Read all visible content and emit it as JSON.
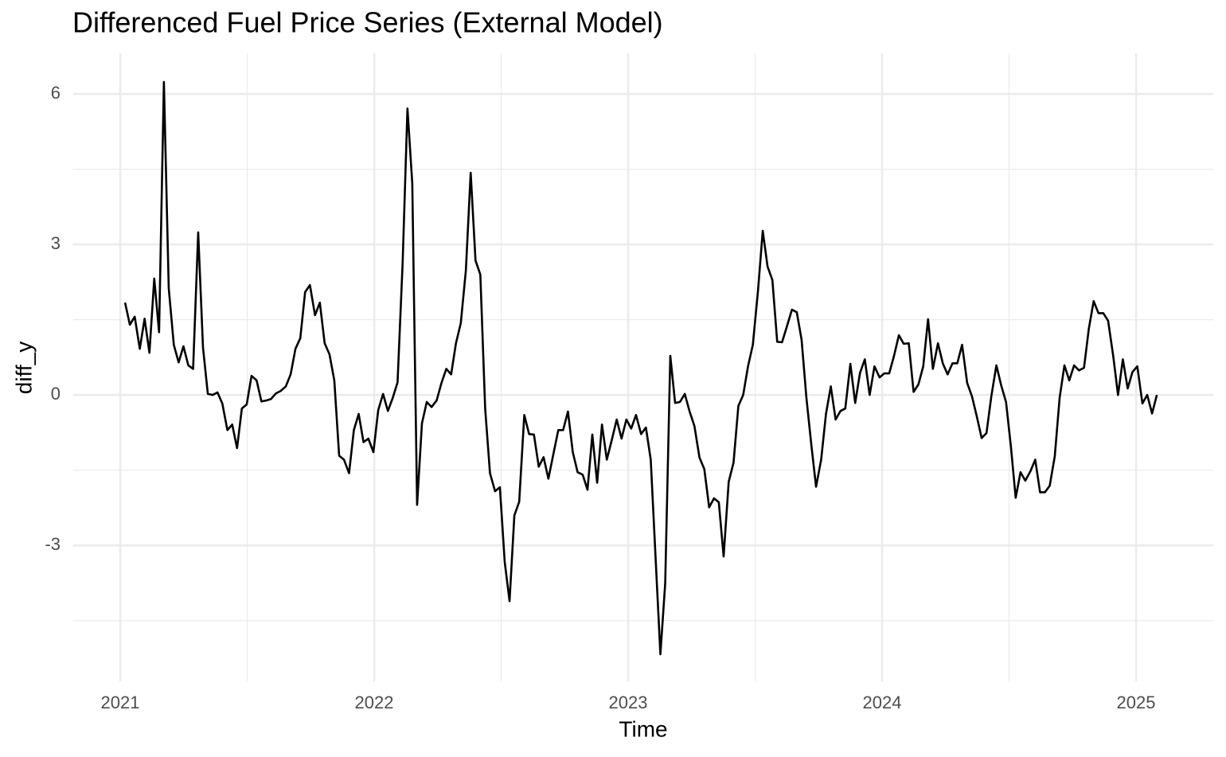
{
  "chart_data": {
    "type": "line",
    "title": "Differenced Fuel Price Series (External Model)",
    "x_label": "Time",
    "y_label": "diff_y",
    "xlim": [
      2020.815,
      2025.304
    ],
    "xticks": [
      2021,
      2022,
      2023,
      2024,
      2025
    ],
    "ylim": [
      -5.71,
      6.81
    ],
    "yticks": [
      -3,
      0,
      3,
      6
    ],
    "grid": true,
    "x": [
      2021.019,
      2021.038,
      2021.057,
      2021.077,
      2021.096,
      2021.115,
      2021.134,
      2021.153,
      2021.172,
      2021.191,
      2021.211,
      2021.23,
      2021.249,
      2021.268,
      2021.287,
      2021.307,
      2021.326,
      2021.345,
      2021.364,
      2021.383,
      2021.402,
      2021.422,
      2021.441,
      2021.46,
      2021.479,
      2021.498,
      2021.517,
      2021.537,
      2021.556,
      2021.575,
      2021.594,
      2021.613,
      2021.632,
      2021.652,
      2021.671,
      2021.69,
      2021.709,
      2021.728,
      2021.747,
      2021.767,
      2021.786,
      2021.805,
      2021.824,
      2021.843,
      2021.862,
      2021.881,
      2021.901,
      2021.92,
      2021.939,
      2021.958,
      2021.977,
      2021.997,
      2022.016,
      2022.035,
      2022.054,
      2022.073,
      2022.092,
      2022.112,
      2022.131,
      2022.15,
      2022.169,
      2022.188,
      2022.207,
      2022.226,
      2022.246,
      2022.265,
      2022.284,
      2022.303,
      2022.322,
      2022.341,
      2022.361,
      2022.38,
      2022.399,
      2022.418,
      2022.437,
      2022.456,
      2022.476,
      2022.495,
      2022.514,
      2022.533,
      2022.552,
      2022.571,
      2022.591,
      2022.61,
      2022.629,
      2022.648,
      2022.667,
      2022.686,
      2022.706,
      2022.725,
      2022.744,
      2022.763,
      2022.782,
      2022.801,
      2022.821,
      2022.84,
      2022.859,
      2022.878,
      2022.897,
      2022.916,
      2022.936,
      2022.955,
      2022.974,
      2022.993,
      2023.012,
      2023.031,
      2023.051,
      2023.07,
      2023.089,
      2023.108,
      2023.127,
      2023.146,
      2023.166,
      2023.185,
      2023.204,
      2023.223,
      2023.242,
      2023.261,
      2023.281,
      2023.3,
      2023.319,
      2023.338,
      2023.357,
      2023.376,
      2023.396,
      2023.415,
      2023.434,
      2023.453,
      2023.472,
      2023.491,
      2023.511,
      2023.53,
      2023.549,
      2023.568,
      2023.587,
      2023.606,
      2023.626,
      2023.645,
      2023.664,
      2023.683,
      2023.702,
      2023.721,
      2023.74,
      2023.76,
      2023.779,
      2023.798,
      2023.817,
      2023.836,
      2023.855,
      2023.875,
      2023.894,
      2023.913,
      2023.932,
      2023.951,
      2023.97,
      2023.99,
      2024.009,
      2024.028,
      2024.047,
      2024.066,
      2024.085,
      2024.105,
      2024.124,
      2024.143,
      2024.162,
      2024.181,
      2024.2,
      2024.22,
      2024.239,
      2024.258,
      2024.277,
      2024.296,
      2024.315,
      2024.335,
      2024.354,
      2024.373,
      2024.392,
      2024.411,
      2024.43,
      2024.45,
      2024.469,
      2024.488,
      2024.507,
      2024.526,
      2024.545,
      2024.564,
      2024.584,
      2024.603,
      2024.622,
      2024.641,
      2024.66,
      2024.68,
      2024.699,
      2024.718,
      2024.737,
      2024.756,
      2024.775,
      2024.795,
      2024.814,
      2024.833,
      2024.852,
      2024.871,
      2024.89,
      2024.91,
      2024.929,
      2024.948,
      2024.967,
      2024.986,
      2025.005,
      2025.025,
      2025.044,
      2025.063,
      2025.082
    ],
    "series": [
      {
        "name": "diff_y",
        "color": "#000000",
        "values": [
          1.84,
          1.4,
          1.56,
          0.92,
          1.52,
          0.84,
          2.32,
          1.25,
          6.24,
          2.13,
          1.0,
          0.65,
          0.97,
          0.59,
          0.52,
          3.24,
          0.94,
          0.02,
          0.0,
          0.05,
          -0.17,
          -0.7,
          -0.59,
          -1.06,
          -0.27,
          -0.19,
          0.38,
          0.29,
          -0.13,
          -0.11,
          -0.08,
          0.03,
          0.08,
          0.17,
          0.41,
          0.92,
          1.13,
          2.05,
          2.19,
          1.59,
          1.84,
          1.03,
          0.81,
          0.29,
          -1.21,
          -1.29,
          -1.56,
          -0.7,
          -0.38,
          -0.94,
          -0.87,
          -1.14,
          -0.3,
          0.02,
          -0.32,
          -0.06,
          0.25,
          2.63,
          5.71,
          4.22,
          -2.19,
          -0.57,
          -0.14,
          -0.24,
          -0.11,
          0.24,
          0.52,
          0.41,
          1.03,
          1.43,
          2.48,
          4.43,
          2.68,
          2.4,
          -0.27,
          -1.56,
          -1.92,
          -1.84,
          -3.33,
          -4.11,
          -2.4,
          -2.13,
          -0.4,
          -0.78,
          -0.79,
          -1.43,
          -1.24,
          -1.67,
          -1.17,
          -0.7,
          -0.7,
          -0.33,
          -1.14,
          -1.54,
          -1.59,
          -1.89,
          -0.79,
          -1.75,
          -0.59,
          -1.29,
          -0.89,
          -0.49,
          -0.87,
          -0.49,
          -0.67,
          -0.4,
          -0.78,
          -0.65,
          -1.29,
          -3.24,
          -5.17,
          -3.75,
          0.78,
          -0.16,
          -0.14,
          0.02,
          -0.33,
          -0.62,
          -1.25,
          -1.48,
          -2.24,
          -2.06,
          -2.14,
          -3.22,
          -1.73,
          -1.35,
          -0.22,
          0.0,
          0.57,
          1.0,
          2.06,
          3.27,
          2.56,
          2.29,
          1.06,
          1.05,
          1.38,
          1.7,
          1.65,
          1.1,
          -0.06,
          -0.98,
          -1.83,
          -1.29,
          -0.38,
          0.17,
          -0.49,
          -0.32,
          -0.27,
          0.62,
          -0.16,
          0.44,
          0.71,
          0.0,
          0.57,
          0.35,
          0.43,
          0.43,
          0.78,
          1.19,
          1.02,
          1.03,
          0.06,
          0.21,
          0.57,
          1.51,
          0.52,
          1.03,
          0.63,
          0.41,
          0.63,
          0.63,
          1.0,
          0.24,
          -0.03,
          -0.43,
          -0.86,
          -0.76,
          -0.03,
          0.59,
          0.19,
          -0.14,
          -1.02,
          -2.05,
          -1.54,
          -1.71,
          -1.52,
          -1.29,
          -1.94,
          -1.94,
          -1.81,
          -1.22,
          -0.06,
          0.59,
          0.29,
          0.59,
          0.49,
          0.54,
          1.32,
          1.87,
          1.63,
          1.63,
          1.48,
          0.78,
          0.0,
          0.71,
          0.13,
          0.46,
          0.57,
          -0.17,
          0.0,
          -0.37,
          0.0
        ]
      }
    ]
  }
}
